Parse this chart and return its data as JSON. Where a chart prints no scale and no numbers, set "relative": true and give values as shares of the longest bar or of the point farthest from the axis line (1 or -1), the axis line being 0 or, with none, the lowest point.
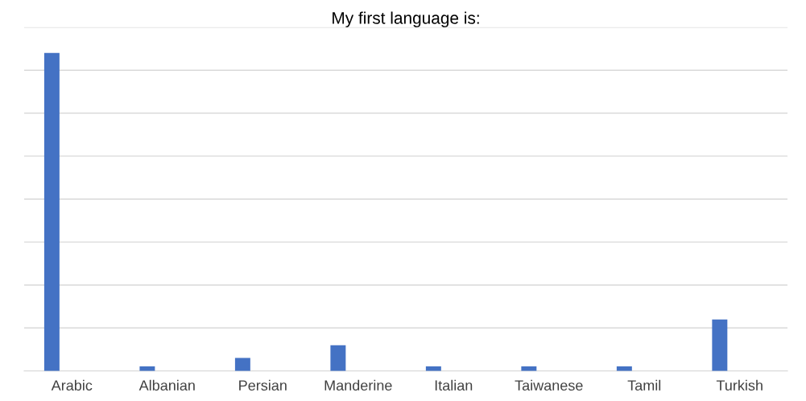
{
  "chart_data": {
    "type": "bar",
    "title": "My first language is:",
    "relative": true,
    "grid": "y",
    "categories": [
      "Arabic",
      "Albanian",
      "Persian",
      "Manderine",
      "Italian",
      "Taiwanese",
      "Tamil",
      "Turkish"
    ],
    "values": [
      1,
      0.014,
      0.041,
      0.081,
      0.014,
      0.014,
      0.014,
      0.162
    ],
    "color": "#4472c4"
  }
}
